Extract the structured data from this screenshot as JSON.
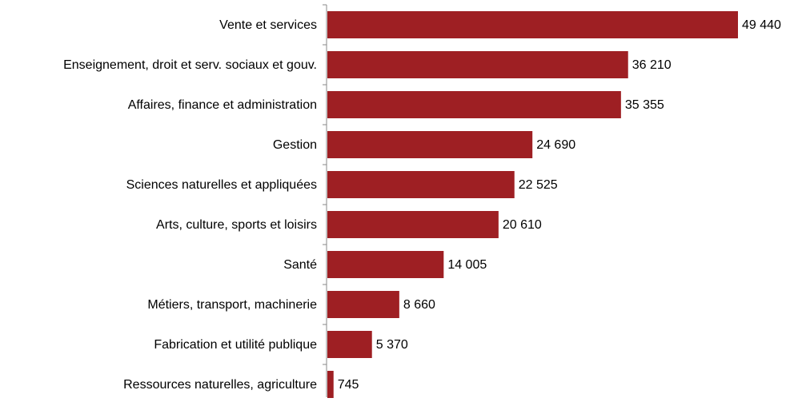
{
  "chart_data": {
    "type": "bar",
    "orientation": "horizontal",
    "categories": [
      "Vente et services",
      "Enseignement, droit et serv. sociaux et gouv.",
      "Affaires, finance et administration",
      "Gestion",
      "Sciences naturelles et appliquées",
      "Arts, culture, sports et loisirs",
      "Santé",
      "Métiers, transport, machinerie",
      "Fabrication et utilité publique",
      "Ressources naturelles, agriculture"
    ],
    "values": [
      49440,
      36210,
      35355,
      24690,
      22525,
      20610,
      14005,
      8660,
      5370,
      745
    ],
    "value_labels": [
      "49 440",
      "36 210",
      "35 355",
      "24 690",
      "22 525",
      "20 610",
      "14 005",
      "8 660",
      "5 370",
      "745"
    ],
    "color": "#9e1f23"
  }
}
